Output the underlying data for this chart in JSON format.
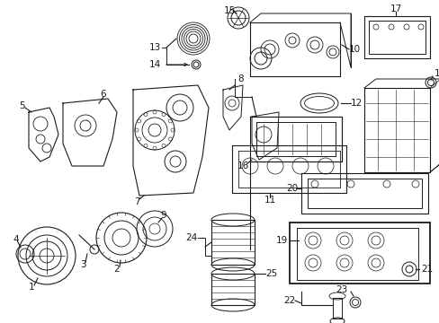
{
  "bg_color": "#ffffff",
  "lc": "#1a1a1a",
  "lw": 0.8,
  "figsize": [
    4.89,
    3.6
  ],
  "dpi": 100,
  "label_fs": 7.5
}
